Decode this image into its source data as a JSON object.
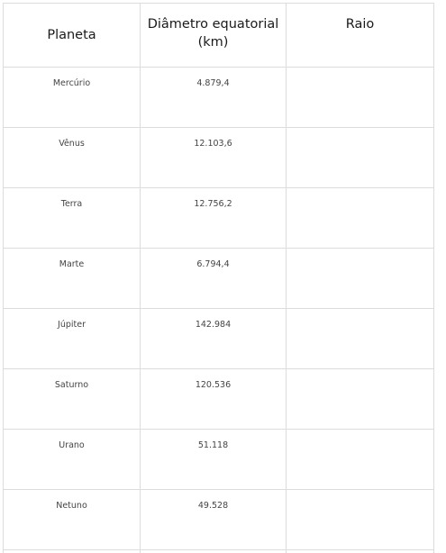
{
  "table": {
    "headers": {
      "planet": "Planeta",
      "diameter_line1": "Diâmetro equatorial",
      "diameter_line2": "(km)",
      "radius": "Raio"
    },
    "rows": [
      {
        "planet": "Mercúrio",
        "diameter": "4.879,4",
        "radius": ""
      },
      {
        "planet": "Vênus",
        "diameter": "12.103,6",
        "radius": ""
      },
      {
        "planet": "Terra",
        "diameter": "12.756,2",
        "radius": ""
      },
      {
        "planet": "Marte",
        "diameter": "6.794,4",
        "radius": ""
      },
      {
        "planet": "Júpiter",
        "diameter": "142.984",
        "radius": ""
      },
      {
        "planet": "Saturno",
        "diameter": "120.536",
        "radius": ""
      },
      {
        "planet": "Urano",
        "diameter": "51.118",
        "radius": ""
      },
      {
        "planet": "Netuno",
        "diameter": "49.528",
        "radius": ""
      }
    ]
  }
}
